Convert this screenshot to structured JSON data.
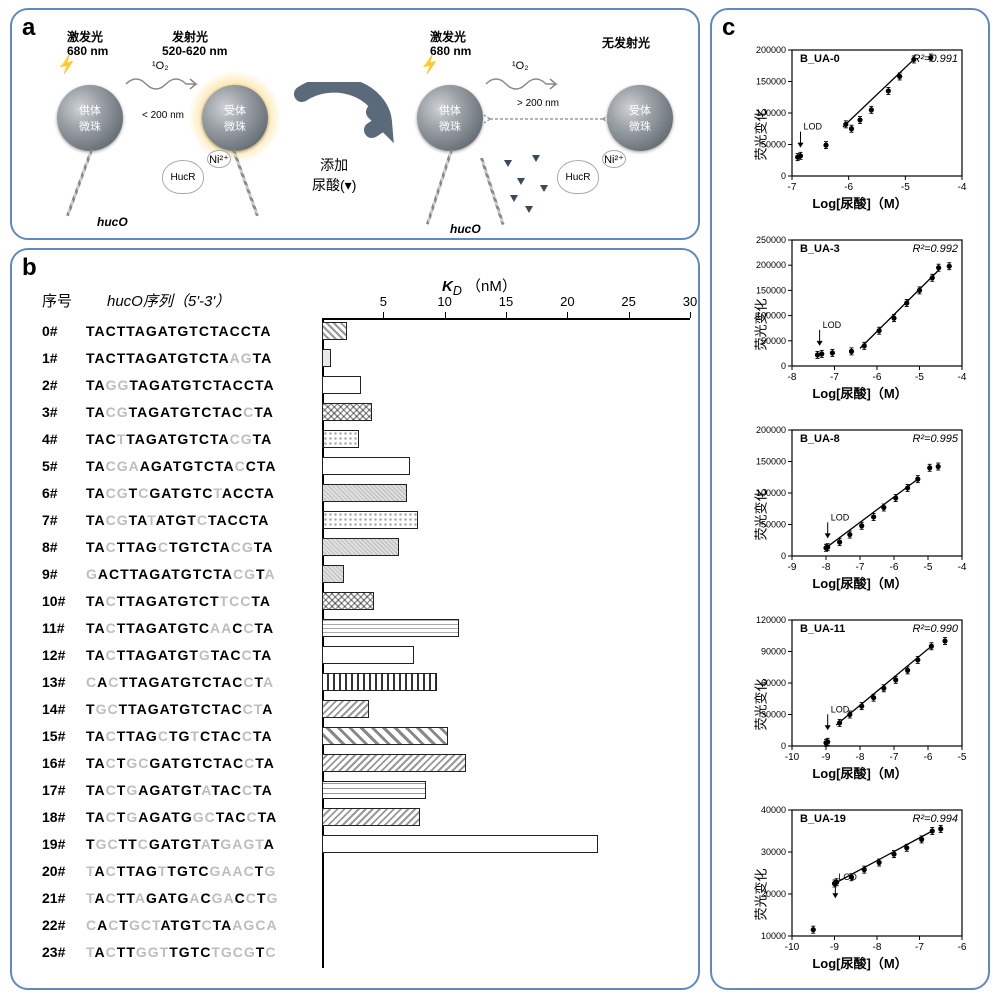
{
  "panel_a": {
    "label": "a",
    "donor_label": "供体\n微珠",
    "acceptor_label": "受体\n微珠",
    "excite_lbl": "激发光",
    "excite_nm": "680 nm",
    "emit_lbl": "发射光",
    "emit_nm": "520-620 nm",
    "noemit_lbl": "无发射光",
    "o2": "¹O₂",
    "dist_close": "< 200 nm",
    "dist_far": "> 200 nm",
    "add_label": "添加\n尿酸(▾)",
    "ni": "Ni²⁺",
    "hucr": "HucR",
    "huco": "hucO"
  },
  "panel_b": {
    "label": "b",
    "hdr_seq_num": "序号",
    "hdr_seq": "hucO序列（5'-3'）",
    "hdr_kd": "K_D",
    "hdr_kd_unit": "（nM）",
    "kd_axis": {
      "min": 0,
      "max": 30,
      "step": 5,
      "ticks": [
        5,
        10,
        15,
        20,
        25,
        30
      ]
    },
    "rows": [
      {
        "n": "0#",
        "seq": "TACTTAGATGTCTACCTA",
        "mut": [],
        "kd": 2.0,
        "pat": "p-diag"
      },
      {
        "n": "1#",
        "seq": "TACTTAGATGTCTAAGTA",
        "mut": [
          14,
          15
        ],
        "kd": 0.7,
        "pat": "p-solid-lt"
      },
      {
        "n": "2#",
        "seq": "TAGGTAGATGTCTACCTA",
        "mut": [
          2,
          3
        ],
        "kd": 3.2,
        "pat": "p-blank"
      },
      {
        "n": "3#",
        "seq": "TACGTAGATGTCTACCTA",
        "mut": [
          2,
          3,
          15
        ],
        "kd": 4.1,
        "pat": "p-cross"
      },
      {
        "n": "4#",
        "seq": "TACTTAGATGTCTACGTA",
        "mut": [
          3,
          14,
          15
        ],
        "kd": 3.0,
        "pat": "p-dots"
      },
      {
        "n": "5#",
        "seq": "TACGAAGATGTCTACCTA",
        "mut": [
          2,
          3,
          4,
          14
        ],
        "kd": 7.2,
        "pat": "p-blank"
      },
      {
        "n": "6#",
        "seq": "TACGTCGATGTCTACCTA",
        "mut": [
          2,
          3,
          5,
          12
        ],
        "kd": 6.9,
        "pat": "p-dense"
      },
      {
        "n": "7#",
        "seq": "TACGTATATGTCTACCTA",
        "mut": [
          2,
          3,
          6,
          11
        ],
        "kd": 7.8,
        "pat": "p-dots"
      },
      {
        "n": "8#",
        "seq": "TACTTAGCTGTCTACGTA",
        "mut": [
          2,
          7,
          14,
          15
        ],
        "kd": 6.3,
        "pat": "p-dense"
      },
      {
        "n": "9#",
        "seq": "GACTTAGATGTCTACGTA",
        "mut": [
          0,
          14,
          15,
          17
        ],
        "kd": 1.8,
        "pat": "p-dense"
      },
      {
        "n": "10#",
        "seq": "TACTTAGATGTCTTCCTA",
        "mut": [
          2,
          13,
          14,
          15
        ],
        "kd": 4.2,
        "pat": "p-cross"
      },
      {
        "n": "11#",
        "seq": "TACTTAGATGTCAACCTA",
        "mut": [
          2,
          12,
          13,
          15
        ],
        "kd": 11.2,
        "pat": "p-hgrid"
      },
      {
        "n": "12#",
        "seq": "TACTTAGATGTGTACCTA",
        "mut": [
          2,
          11,
          15
        ],
        "kd": 7.5,
        "pat": "p-blank"
      },
      {
        "n": "13#",
        "seq": "CACTTAGATGTCTACCTA",
        "mut": [
          0,
          2,
          15,
          17
        ],
        "kd": 9.4,
        "pat": "p-vstripe"
      },
      {
        "n": "14#",
        "seq": "TGCTTAGATGTCTACCTA",
        "mut": [
          1,
          2,
          15,
          16
        ],
        "kd": 3.8,
        "pat": "p-rdiag"
      },
      {
        "n": "15#",
        "seq": "TACTTAGCTGTCTACCTA",
        "mut": [
          2,
          7,
          10,
          15
        ],
        "kd": 10.3,
        "pat": "p-wide-diag"
      },
      {
        "n": "16#",
        "seq": "TACTGCGATGTCTACCTA",
        "mut": [
          2,
          4,
          5,
          15
        ],
        "kd": 11.7,
        "pat": "p-rdiag"
      },
      {
        "n": "17#",
        "seq": "TACTGAGATGTATACCTA",
        "mut": [
          2,
          4,
          11,
          15
        ],
        "kd": 8.5,
        "pat": "p-brick"
      },
      {
        "n": "18#",
        "seq": "TACTGAGATGGCTACCTA",
        "mut": [
          2,
          4,
          10,
          11,
          15
        ],
        "kd": 8.0,
        "pat": "p-rdiag"
      },
      {
        "n": "19#",
        "seq": "TGCTTCGATGTATGAGTA",
        "mut": [
          1,
          2,
          5,
          11,
          13,
          14,
          15,
          16
        ],
        "kd": 22.5,
        "pat": "p-blank"
      },
      {
        "n": "20#",
        "seq": "TACTTAGTTGTCGAACTG",
        "mut": [
          0,
          2,
          7,
          12,
          13,
          14,
          15,
          17
        ],
        "kd": null,
        "pat": ""
      },
      {
        "n": "21#",
        "seq": "TACTTAGATGACGACCTG",
        "mut": [
          0,
          2,
          5,
          10,
          12,
          13,
          15,
          17
        ],
        "kd": null,
        "pat": ""
      },
      {
        "n": "22#",
        "seq": "CACTGCTATGTCTAAGCA",
        "mut": [
          0,
          2,
          4,
          5,
          6,
          11,
          14,
          15,
          16,
          17
        ],
        "kd": null,
        "pat": ""
      },
      {
        "n": "23#",
        "seq": "TACTTGGTTGTCTGCGTC",
        "mut": [
          0,
          2,
          5,
          6,
          7,
          12,
          13,
          14,
          15,
          17
        ],
        "kd": null,
        "pat": ""
      }
    ]
  },
  "panel_c": {
    "label": "c",
    "ylab": "荧光变化",
    "xlab": "Log[尿酸]（M）",
    "lod": "LOD",
    "charts": [
      {
        "name": "BUA-0",
        "title": "B_UA-0",
        "r2": "R²=0.991",
        "xlim": [
          -7,
          -4
        ],
        "ylim": [
          0,
          200000
        ],
        "ystep": 50000,
        "xtick_step": 1,
        "points": [
          [
            -6.9,
            30000
          ],
          [
            -6.85,
            32000
          ],
          [
            -6.4,
            49000
          ],
          [
            -6.05,
            82000
          ],
          [
            -5.95,
            75000
          ],
          [
            -5.8,
            89000
          ],
          [
            -5.6,
            105000
          ],
          [
            -5.3,
            135000
          ],
          [
            -5.1,
            158000
          ],
          [
            -4.85,
            185000
          ],
          [
            -4.55,
            188000
          ]
        ],
        "fit": [
          [
            -6.1,
            78000
          ],
          [
            -4.85,
            185000
          ]
        ],
        "lod_xy": [
          -6.85,
          45000
        ]
      },
      {
        "name": "BUA-3",
        "title": "B_UA-3",
        "r2": "R²=0.992",
        "xlim": [
          -8,
          -4
        ],
        "ylim": [
          0,
          250000
        ],
        "ystep": 50000,
        "xtick_step": 1,
        "points": [
          [
            -7.4,
            22000
          ],
          [
            -7.3,
            24000
          ],
          [
            -7.05,
            26000
          ],
          [
            -6.6,
            29000
          ],
          [
            -6.3,
            40000
          ],
          [
            -5.95,
            70000
          ],
          [
            -5.6,
            95000
          ],
          [
            -5.3,
            125000
          ],
          [
            -5.0,
            150000
          ],
          [
            -4.7,
            175000
          ],
          [
            -4.55,
            195000
          ],
          [
            -4.3,
            198000
          ]
        ],
        "fit": [
          [
            -6.4,
            35000
          ],
          [
            -4.55,
            190000
          ]
        ],
        "lod_xy": [
          -7.35,
          40000
        ]
      },
      {
        "name": "BUA-8",
        "title": "B_UA-8",
        "r2": "R²=0.995",
        "xlim": [
          -9,
          -4
        ],
        "ylim": [
          0,
          200000
        ],
        "ystep": 50000,
        "xtick_step": 1,
        "points": [
          [
            -8.0,
            13000
          ],
          [
            -7.95,
            14000
          ],
          [
            -7.6,
            22000
          ],
          [
            -7.3,
            34000
          ],
          [
            -6.95,
            48000
          ],
          [
            -6.6,
            62000
          ],
          [
            -6.3,
            77000
          ],
          [
            -5.95,
            92000
          ],
          [
            -5.6,
            108000
          ],
          [
            -5.3,
            122000
          ],
          [
            -4.95,
            140000
          ],
          [
            -4.7,
            142000
          ]
        ],
        "fit": [
          [
            -8.0,
            13000
          ],
          [
            -5.3,
            122000
          ]
        ],
        "lod_xy": [
          -7.95,
          28000
        ]
      },
      {
        "name": "BUA-11",
        "title": "B_UA-11",
        "r2": "R²=0.990",
        "xlim": [
          -10,
          -5
        ],
        "ylim": [
          0,
          120000
        ],
        "ystep": 30000,
        "xtick_step": 1,
        "points": [
          [
            -9.0,
            3000
          ],
          [
            -8.95,
            4000
          ],
          [
            -8.6,
            22000
          ],
          [
            -8.3,
            30000
          ],
          [
            -7.95,
            38000
          ],
          [
            -7.6,
            46000
          ],
          [
            -7.3,
            55000
          ],
          [
            -6.95,
            63000
          ],
          [
            -6.6,
            72000
          ],
          [
            -6.3,
            82000
          ],
          [
            -5.9,
            95000
          ],
          [
            -5.5,
            100000
          ]
        ],
        "fit": [
          [
            -8.7,
            20000
          ],
          [
            -5.9,
            95000
          ]
        ],
        "lod_xy": [
          -8.95,
          15000
        ]
      },
      {
        "name": "BUA-19",
        "title": "B_UA-19",
        "r2": "R²=0.994",
        "xlim": [
          -10,
          -6
        ],
        "ylim": [
          10000,
          40000
        ],
        "ystep": 10000,
        "xtick_step": 1,
        "points": [
          [
            -9.5,
            11500
          ],
          [
            -9.0,
            22500
          ],
          [
            -8.95,
            22800
          ],
          [
            -8.6,
            24000
          ],
          [
            -8.3,
            25800
          ],
          [
            -7.95,
            27500
          ],
          [
            -7.6,
            29500
          ],
          [
            -7.3,
            31000
          ],
          [
            -6.95,
            33000
          ],
          [
            -6.7,
            35000
          ],
          [
            -6.5,
            35500
          ]
        ],
        "fit": [
          [
            -9.0,
            22500
          ],
          [
            -6.7,
            35000
          ]
        ],
        "lod_xy": [
          -8.98,
          19000
        ]
      }
    ]
  }
}
